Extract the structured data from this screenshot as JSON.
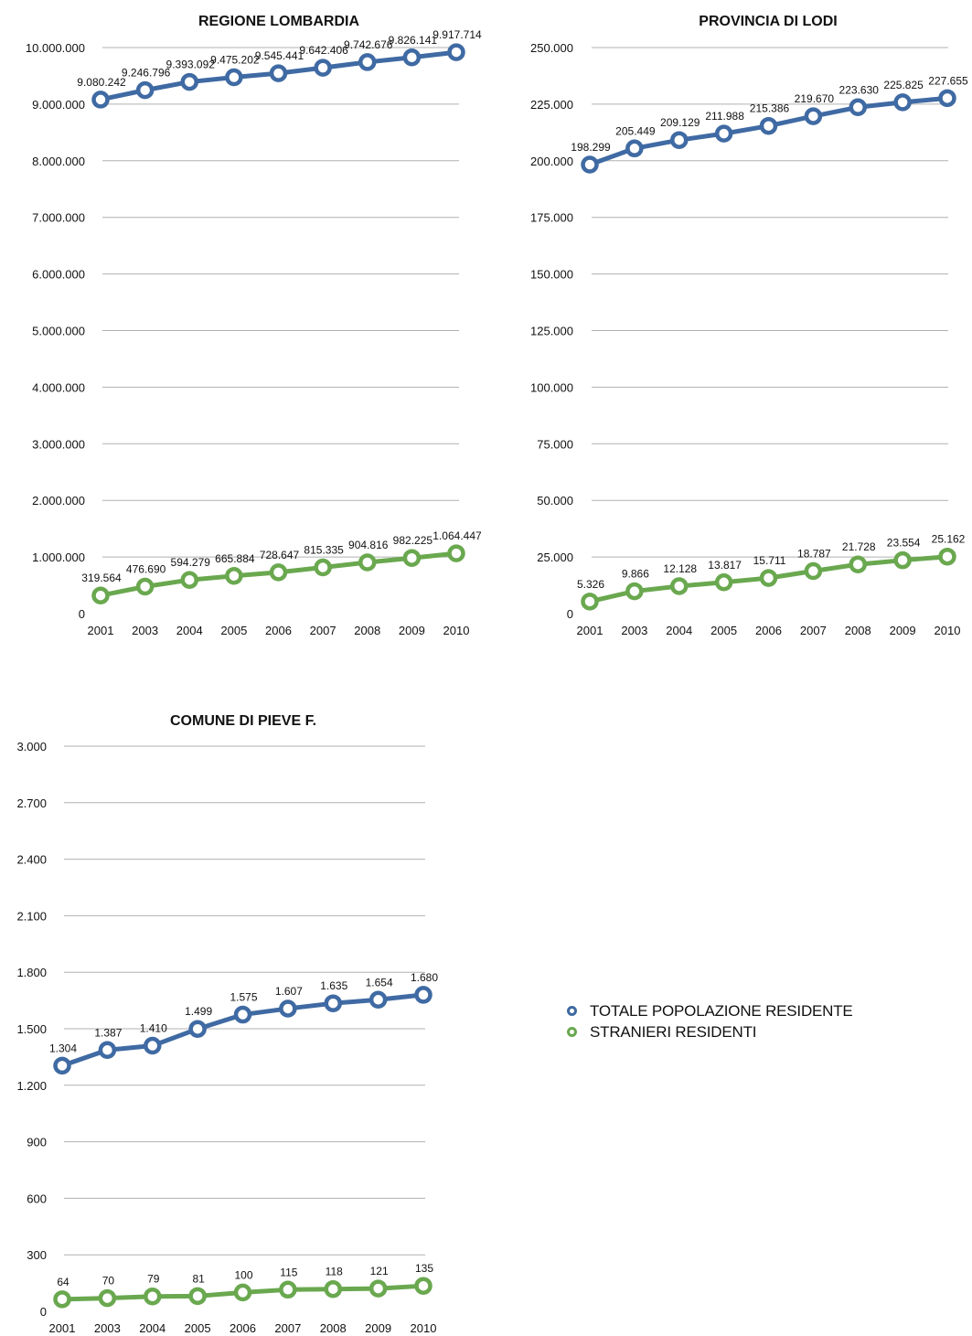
{
  "colors": {
    "totale": "#3f6aa3",
    "stranieri": "#6aa84f",
    "grid": "#b0b0b0",
    "text": "#111111"
  },
  "legend": [
    {
      "name": "TOTALE POPOLAZIONE RESIDENTE",
      "color": "#3f6aa3"
    },
    {
      "name": "STRANIERI RESIDENTI",
      "color": "#6aa84f"
    }
  ],
  "chart_data": [
    {
      "type": "line",
      "title": "REGIONE LOMBARDIA",
      "categories": [
        "2001",
        "2003",
        "2004",
        "2005",
        "2006",
        "2007",
        "2008",
        "2009",
        "2010"
      ],
      "ylim": [
        0,
        10000000
      ],
      "yticks": [
        0,
        1000000,
        2000000,
        3000000,
        4000000,
        5000000,
        6000000,
        7000000,
        8000000,
        9000000,
        10000000
      ],
      "ytick_labels": [
        "0",
        "1.000.000",
        "2.000.000",
        "3.000.000",
        "4.000.000",
        "5.000.000",
        "6.000.000",
        "7.000.000",
        "8.000.000",
        "9.000.000",
        "10.000.000"
      ],
      "grid": true,
      "series": [
        {
          "name": "TOTALE POPOLAZIONE RESIDENTE",
          "values": [
            9080242,
            9246796,
            9393092,
            9475202,
            9545441,
            9642406,
            9742676,
            9826141,
            9917714
          ],
          "labels": [
            "9.080.242",
            "9.246.796",
            "9.393.092",
            "9.475.202",
            "9.545.441",
            "9.642.406",
            "9.742.676",
            "9.826.141",
            "9.917.714"
          ]
        },
        {
          "name": "STRANIERI RESIDENTI",
          "values": [
            319564,
            476690,
            594279,
            665884,
            728647,
            815335,
            904816,
            982225,
            1064447
          ],
          "labels": [
            "319.564",
            "476.690",
            "594.279",
            "665.884",
            "728.647",
            "815.335",
            "904.816",
            "982.225",
            "1.064.447"
          ]
        }
      ]
    },
    {
      "type": "line",
      "title": "PROVINCIA DI LODI",
      "categories": [
        "2001",
        "2003",
        "2004",
        "2005",
        "2006",
        "2007",
        "2008",
        "2009",
        "2010"
      ],
      "ylim": [
        0,
        250000
      ],
      "yticks": [
        0,
        25000,
        50000,
        75000,
        100000,
        125000,
        150000,
        175000,
        200000,
        225000,
        250000
      ],
      "ytick_labels": [
        "0",
        "25.000",
        "50.000",
        "75.000",
        "100.000",
        "125.000",
        "150.000",
        "175.000",
        "200.000",
        "225.000",
        "250.000"
      ],
      "grid": true,
      "series": [
        {
          "name": "TOTALE POPOLAZIONE RESIDENTE",
          "values": [
            198299,
            205449,
            209129,
            211988,
            215386,
            219670,
            223630,
            225825,
            227655
          ],
          "labels": [
            "198.299",
            "205.449",
            "209.129",
            "211.988",
            "215.386",
            "219.670",
            "223.630",
            "225.825",
            "227.655"
          ]
        },
        {
          "name": "STRANIERI RESIDENTI",
          "values": [
            5326,
            9866,
            12128,
            13817,
            15711,
            18787,
            21728,
            23554,
            25162
          ],
          "labels": [
            "5.326",
            "9.866",
            "12.128",
            "13.817",
            "15.711",
            "18.787",
            "21.728",
            "23.554",
            "25.162"
          ]
        }
      ]
    },
    {
      "type": "line",
      "title": "COMUNE DI PIEVE F.",
      "categories": [
        "2001",
        "2003",
        "2004",
        "2005",
        "2006",
        "2007",
        "2008",
        "2009",
        "2010"
      ],
      "ylim": [
        0,
        3000
      ],
      "yticks": [
        0,
        300,
        600,
        900,
        1200,
        1500,
        1800,
        2100,
        2400,
        2700,
        3000
      ],
      "ytick_labels": [
        "0",
        "300",
        "600",
        "900",
        "1.200",
        "1.500",
        "1.800",
        "2.100",
        "2.400",
        "2.700",
        "3.000"
      ],
      "grid": true,
      "series": [
        {
          "name": "TOTALE POPOLAZIONE RESIDENTE",
          "values": [
            1304,
            1387,
            1410,
            1499,
            1575,
            1607,
            1635,
            1654,
            1680
          ],
          "labels": [
            "1.304",
            "1.387",
            "1.410",
            "1.499",
            "1.575",
            "1.607",
            "1.635",
            "1.654",
            "1.680"
          ]
        },
        {
          "name": "STRANIERI RESIDENTI",
          "values": [
            64,
            70,
            79,
            81,
            100,
            115,
            118,
            121,
            135
          ],
          "labels": [
            "64",
            "70",
            "79",
            "81",
            "100",
            "115",
            "118",
            "121",
            "135"
          ]
        }
      ]
    }
  ]
}
